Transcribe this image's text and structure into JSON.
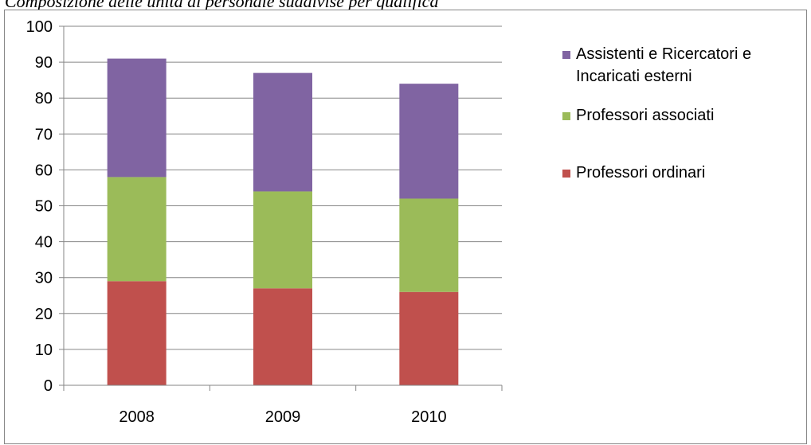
{
  "caption": "Composizione delle unità di personale suddivise per qualifica",
  "chart_data": {
    "type": "bar",
    "stacked": true,
    "categories": [
      "2008",
      "2009",
      "2010"
    ],
    "series": [
      {
        "name": "Professori ordinari",
        "values": [
          29,
          27,
          26
        ],
        "color": "#c0504d"
      },
      {
        "name": "Professori associati",
        "values": [
          29,
          27,
          26
        ],
        "color": "#9bbb59"
      },
      {
        "name": "Assistenti e Ricercatori e Incaricati esterni",
        "values": [
          33,
          33,
          32
        ],
        "color": "#8064a2"
      }
    ],
    "ylim": [
      0,
      100
    ],
    "yticks": [
      0,
      10,
      20,
      30,
      40,
      50,
      60,
      70,
      80,
      90,
      100
    ],
    "grid": true,
    "legend_position": "right",
    "legend_entries": [
      {
        "lines": [
          "Assistenti e Ricercatori e",
          "Incaricati esterni"
        ],
        "color": "#8064a2"
      },
      {
        "lines": [
          "Professori associati"
        ],
        "color": "#9bbb59"
      },
      {
        "lines": [
          "Professori ordinari"
        ],
        "color": "#c0504d"
      }
    ]
  }
}
